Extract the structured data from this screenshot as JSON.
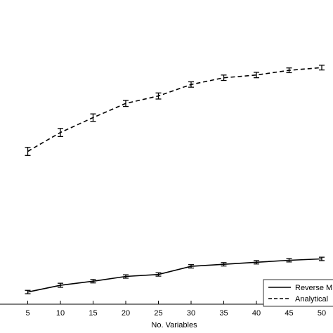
{
  "chart_data": {
    "type": "line",
    "xlabel": "No. Variables",
    "x": [
      5,
      10,
      15,
      20,
      25,
      30,
      35,
      40,
      45,
      50
    ],
    "xlim": [
      0,
      50
    ],
    "ylim": [
      0,
      4500
    ],
    "grid": false,
    "legend_position": "bottom-right",
    "series": [
      {
        "name": "Reverse M",
        "style": "solid",
        "color": "#000000",
        "values": [
          180,
          280,
          340,
          410,
          440,
          560,
          590,
          620,
          650,
          670
        ],
        "errors": [
          25,
          30,
          25,
          25,
          25,
          25,
          25,
          25,
          25,
          25
        ]
      },
      {
        "name": "Analytical",
        "style": "dashed",
        "color": "#000000",
        "values": [
          2260,
          2540,
          2760,
          2970,
          3080,
          3250,
          3350,
          3390,
          3460,
          3500
        ],
        "errors": [
          60,
          60,
          55,
          45,
          45,
          40,
          40,
          40,
          35,
          35
        ]
      }
    ]
  }
}
